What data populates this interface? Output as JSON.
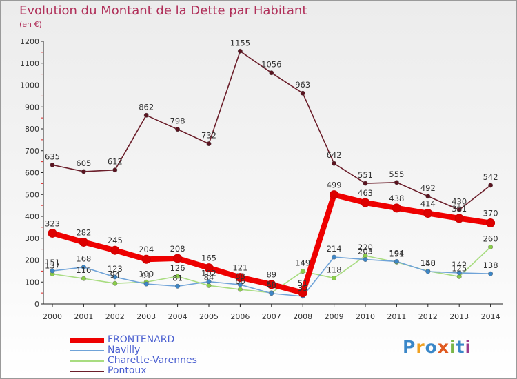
{
  "title": "Evolution du Montant de la Dette par Habitant",
  "unit_label": "(en €)",
  "logo": {
    "text": "Proxiti",
    "colors": [
      "#3a87c8",
      "#f0a020",
      "#3a87c8",
      "#e05a20",
      "#7ab648",
      "#3a87c8",
      "#9c3c8c"
    ]
  },
  "chart_data": {
    "type": "line",
    "x": [
      2000,
      2001,
      2002,
      2003,
      2004,
      2005,
      2006,
      2007,
      2008,
      2009,
      2010,
      2011,
      2012,
      2013,
      2014
    ],
    "ylim": [
      0,
      1200
    ],
    "yticks": [
      0,
      100,
      200,
      300,
      400,
      500,
      600,
      700,
      800,
      900,
      1000,
      1100,
      1200
    ],
    "grid": false,
    "legend_position": "bottom-left",
    "series": [
      {
        "name": "Pontoux",
        "color": "#6b1e2a",
        "marker_color": "#5a1420",
        "values": [
          635,
          605,
          612,
          862,
          798,
          732,
          1155,
          1056,
          963,
          642,
          551,
          555,
          492,
          430,
          542
        ],
        "labels": [
          "635",
          "605",
          "612",
          "862",
          "798",
          "732",
          "1155",
          "1056",
          "963",
          "642",
          "551",
          "555",
          "492",
          "430",
          "542"
        ]
      },
      {
        "name": "Charette-Varennes",
        "color": "#a8dc80",
        "marker_color": "#8acd4a",
        "values": [
          137,
          116,
          94,
          100,
          126,
          84,
          66,
          51,
          149,
          118,
          220,
          191,
          150,
          125,
          260
        ],
        "labels": [
          "137",
          "116",
          "94",
          "100",
          "126",
          "84",
          "66",
          "51",
          "149",
          "118",
          "220",
          "191",
          "150",
          "125",
          "260"
        ]
      },
      {
        "name": "Navilly",
        "color": "#6fa3d8",
        "marker_color": "#3d86c6",
        "values": [
          151,
          168,
          123,
          91,
          81,
          102,
          88,
          48,
          35,
          214,
          203,
          194,
          148,
          142,
          138
        ],
        "labels": [
          "151",
          "168",
          "123",
          "91",
          "81",
          "102",
          "88",
          "48",
          "35",
          "214",
          "203",
          "194",
          "148",
          "142",
          "138"
        ]
      },
      {
        "name": "FRONTENARD",
        "color": "#ee0000",
        "marker_color": "#dd0000",
        "values": [
          323,
          282,
          245,
          204,
          208,
          165,
          121,
          89,
          51,
          499,
          463,
          438,
          414,
          391,
          370
        ],
        "labels": [
          "323",
          "282",
          "245",
          "204",
          "208",
          "165",
          "121",
          "89",
          "51",
          "499",
          "463",
          "438",
          "414",
          "391",
          "370"
        ]
      }
    ],
    "legend_order": [
      "FRONTENARD",
      "Navilly",
      "Charette-Varennes",
      "Pontoux"
    ]
  }
}
